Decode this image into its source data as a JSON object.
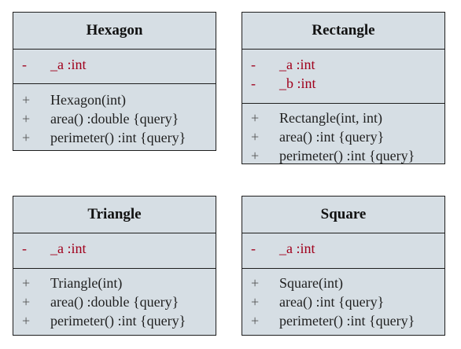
{
  "classes": [
    {
      "name": "Hexagon",
      "attributes": [
        {
          "visibility": "-",
          "text": "_a :int"
        }
      ],
      "operations": [
        {
          "visibility": "+",
          "text": "Hexagon(int)"
        },
        {
          "visibility": "+",
          "text": "area() :double {query}"
        },
        {
          "visibility": "+",
          "text": "perimeter() :int {query}"
        }
      ]
    },
    {
      "name": "Rectangle",
      "attributes": [
        {
          "visibility": "-",
          "text": "_a :int"
        },
        {
          "visibility": "-",
          "text": "_b :int"
        }
      ],
      "operations": [
        {
          "visibility": "+",
          "text": "Rectangle(int, int)"
        },
        {
          "visibility": "+",
          "text": "area() :int {query}"
        },
        {
          "visibility": "+",
          "text": "perimeter() :int {query}"
        }
      ]
    },
    {
      "name": "Triangle",
      "attributes": [
        {
          "visibility": "-",
          "text": "_a :int"
        }
      ],
      "operations": [
        {
          "visibility": "+",
          "text": "Triangle(int)"
        },
        {
          "visibility": "+",
          "text": "area() :double {query}"
        },
        {
          "visibility": "+",
          "text": "perimeter() :int {query}"
        }
      ]
    },
    {
      "name": "Square",
      "attributes": [
        {
          "visibility": "-",
          "text": "_a :int"
        }
      ],
      "operations": [
        {
          "visibility": "+",
          "text": "Square(int)"
        },
        {
          "visibility": "+",
          "text": "area() :int {query}"
        },
        {
          "visibility": "+",
          "text": "perimeter() :int {query}"
        }
      ]
    }
  ]
}
